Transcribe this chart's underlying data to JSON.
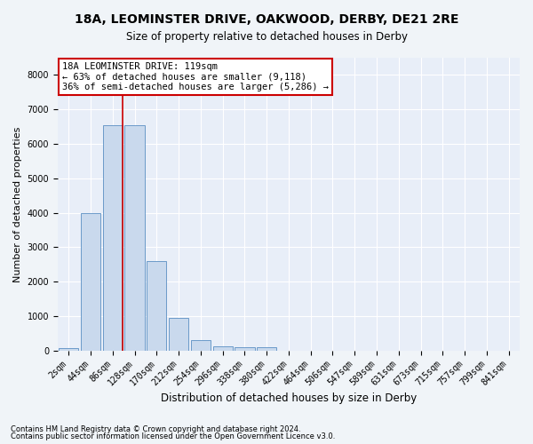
{
  "title1": "18A, LEOMINSTER DRIVE, OAKWOOD, DERBY, DE21 2RE",
  "title2": "Size of property relative to detached houses in Derby",
  "xlabel": "Distribution of detached houses by size in Derby",
  "ylabel": "Number of detached properties",
  "footnote1": "Contains HM Land Registry data © Crown copyright and database right 2024.",
  "footnote2": "Contains public sector information licensed under the Open Government Licence v3.0.",
  "bin_labels": [
    "2sqm",
    "44sqm",
    "86sqm",
    "128sqm",
    "170sqm",
    "212sqm",
    "254sqm",
    "296sqm",
    "338sqm",
    "380sqm",
    "422sqm",
    "464sqm",
    "506sqm",
    "547sqm",
    "589sqm",
    "631sqm",
    "673sqm",
    "715sqm",
    "757sqm",
    "799sqm",
    "841sqm"
  ],
  "bar_values": [
    75,
    3980,
    6550,
    6550,
    2600,
    940,
    310,
    130,
    100,
    85,
    0,
    0,
    0,
    0,
    0,
    0,
    0,
    0,
    0,
    0,
    0
  ],
  "bar_color": "#c9d9ed",
  "bar_edge_color": "#5a8fc3",
  "vline_color": "#cc0000",
  "vline_x": 2.45,
  "ylim": [
    0,
    8500
  ],
  "yticks": [
    0,
    1000,
    2000,
    3000,
    4000,
    5000,
    6000,
    7000,
    8000
  ],
  "annotation_title": "18A LEOMINSTER DRIVE: 119sqm",
  "annotation_line1": "← 63% of detached houses are smaller (9,118)",
  "annotation_line2": "36% of semi-detached houses are larger (5,286) →",
  "bg_color": "#f0f4f8",
  "plot_bg_color": "#e8eef8",
  "grid_color": "#ffffff",
  "title1_fontsize": 10,
  "title2_fontsize": 8.5,
  "tick_fontsize": 7,
  "ylabel_fontsize": 8,
  "xlabel_fontsize": 8.5,
  "annotation_fontsize": 7.5,
  "footnote_fontsize": 6
}
